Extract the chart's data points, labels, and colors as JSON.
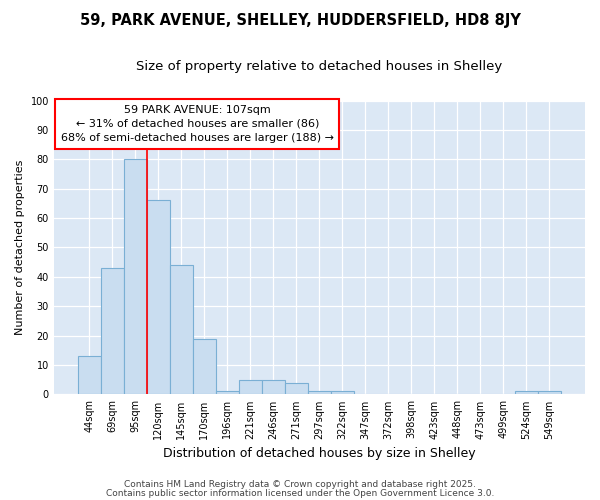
{
  "title1": "59, PARK AVENUE, SHELLEY, HUDDERSFIELD, HD8 8JY",
  "title2": "Size of property relative to detached houses in Shelley",
  "xlabel": "Distribution of detached houses by size in Shelley",
  "ylabel": "Number of detached properties",
  "categories": [
    "44sqm",
    "69sqm",
    "95sqm",
    "120sqm",
    "145sqm",
    "170sqm",
    "196sqm",
    "221sqm",
    "246sqm",
    "271sqm",
    "297sqm",
    "322sqm",
    "347sqm",
    "372sqm",
    "398sqm",
    "423sqm",
    "448sqm",
    "473sqm",
    "499sqm",
    "524sqm",
    "549sqm"
  ],
  "values": [
    13,
    43,
    80,
    66,
    44,
    19,
    1,
    5,
    5,
    4,
    1,
    1,
    0,
    0,
    0,
    0,
    0,
    0,
    0,
    1,
    1
  ],
  "bar_color": "#c9ddf0",
  "bar_edge_color": "#7aafd4",
  "red_line_x": 2.5,
  "annotation_title": "59 PARK AVENUE: 107sqm",
  "annotation_line1": "← 31% of detached houses are smaller (86)",
  "annotation_line2": "68% of semi-detached houses are larger (188) →",
  "ylim": [
    0,
    100
  ],
  "yticks": [
    0,
    10,
    20,
    30,
    40,
    50,
    60,
    70,
    80,
    90,
    100
  ],
  "plot_bg_color": "#dce8f5",
  "fig_bg_color": "#ffffff",
  "grid_color": "#ffffff",
  "footer1": "Contains HM Land Registry data © Crown copyright and database right 2025.",
  "footer2": "Contains public sector information licensed under the Open Government Licence 3.0.",
  "title1_fontsize": 10.5,
  "title2_fontsize": 9.5,
  "xlabel_fontsize": 9,
  "ylabel_fontsize": 8,
  "tick_fontsize": 7,
  "annotation_fontsize": 8,
  "footer_fontsize": 6.5
}
